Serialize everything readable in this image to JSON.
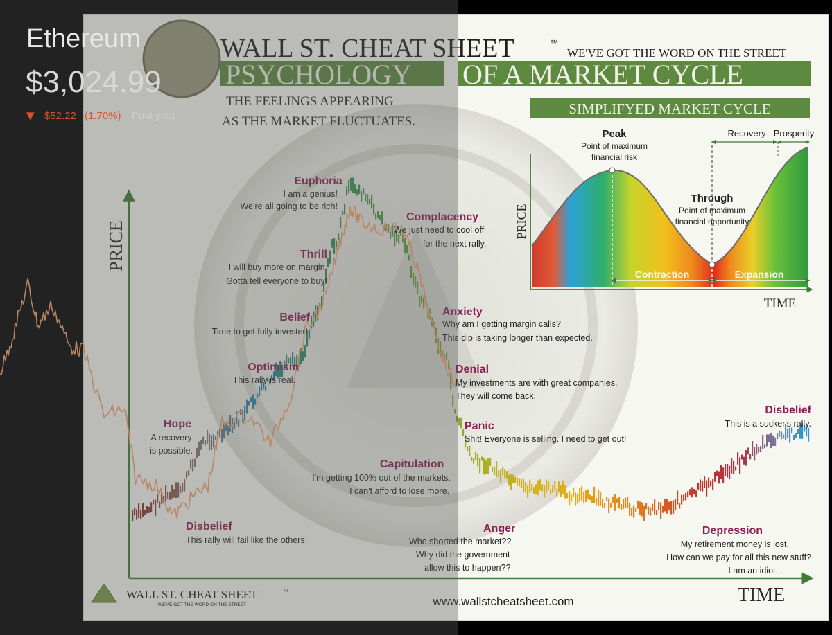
{
  "overlay": {
    "asset_name": "Ethereum",
    "price": "$3,024.99",
    "change_arrow": "▼",
    "change_value": "$52.22",
    "change_percent": "(1.70%)",
    "period": "Past year",
    "down_color": "#d9532a"
  },
  "header": {
    "brand": "WALL ST. CHEAT SHEET",
    "tm": "™",
    "tagline": "WE'VE GOT THE WORD ON THE STREET",
    "title_part1": "PSYCHOLOGY",
    "title_part2": "OF A MARKET CYCLE",
    "subtitle_line1": "THE FEELINGS APPEARING",
    "subtitle_line2": "AS THE MARKET FLUCTUATES.",
    "title_bar_color": "#4f7f3a"
  },
  "simplified": {
    "banner": "SIMPLIFYED MARKET CYCLE",
    "peak": "Peak",
    "peak_desc_1": "Point of maximum",
    "peak_desc_2": "financial risk",
    "recovery": "Recovery",
    "prosperity": "Prosperity",
    "through": "Through",
    "through_desc_1": "Point of maximum",
    "through_desc_2": "financial opportunity",
    "contraction": "Contraction",
    "expansion": "Expansion",
    "price_label": "PRICE",
    "time_label": "TIME"
  },
  "chart_data": {
    "type": "line",
    "title": "PSYCHOLOGY OF A MARKET CYCLE",
    "xlabel": "TIME",
    "ylabel": "PRICE",
    "stages": [
      {
        "name": "Disbelief",
        "quote": "This rally will fail like the others.",
        "level": 0.12
      },
      {
        "name": "Hope",
        "quote": "A recovery is possible.",
        "level": 0.28
      },
      {
        "name": "Optimism",
        "quote": "This rally is real.",
        "level": 0.5
      },
      {
        "name": "Belief",
        "quote": "Time to get fully invested.",
        "level": 0.64
      },
      {
        "name": "Thrill",
        "quote": "I will buy more on margin. Gotta tell everyone to buy!",
        "level": 0.83
      },
      {
        "name": "Euphoria",
        "quote": "I am a genius! We're all going to be rich!",
        "level": 1.0
      },
      {
        "name": "Complacency",
        "quote": "We just need to cool off for the next rally.",
        "level": 0.86
      },
      {
        "name": "Anxiety",
        "quote": "Why am I getting margin calls? This dip is taking longer than expected.",
        "level": 0.67
      },
      {
        "name": "Denial",
        "quote": "My investments are with great companies. They will come back.",
        "level": 0.52
      },
      {
        "name": "Panic",
        "quote": "Shit! Everyone is selling. I need to get out!",
        "level": 0.33
      },
      {
        "name": "Capitulation",
        "quote": "I'm getting 100% out of the markets. I can't afford to lose more.",
        "level": 0.22
      },
      {
        "name": "Anger",
        "quote": "Who shorted the market?? Why did the government allow this to happen??",
        "level": 0.14
      },
      {
        "name": "Depression",
        "quote": "My retirement money is lost. How can we pay for all this new stuff? I am an idiot.",
        "level": 0.08
      },
      {
        "name": "Disbelief",
        "quote": "This is a sucker's rally.",
        "level": 0.3
      }
    ],
    "labels": {
      "euphoria": {
        "name": "Euphoria",
        "l1": "I am a genius!",
        "l2": "We're all going to be rich!"
      },
      "complacency": {
        "name": "Complacency",
        "l1": "We just need to cool off",
        "l2": "for the next rally."
      },
      "thrill": {
        "name": "Thrill",
        "l1": "I will buy more on margin.",
        "l2": "Gotta tell everyone to buy!"
      },
      "anxiety": {
        "name": "Anxiety",
        "l1": "Why am I getting margin calls?",
        "l2": "This dip is taking longer than expected."
      },
      "belief": {
        "name": "Belief",
        "l1": "Time to get fully invested."
      },
      "optimism": {
        "name": "Optimism",
        "l1": "This rally is real."
      },
      "denial": {
        "name": "Denial",
        "l1": "My investments are with great companies.",
        "l2": "They will come back."
      },
      "hope": {
        "name": "Hope",
        "l1": "A recovery",
        "l2": "is possible."
      },
      "panic": {
        "name": "Panic",
        "l1": "Shit! Everyone is selling. I need to get out!"
      },
      "capitulation": {
        "name": "Capitulation",
        "l1": "I'm getting 100% out of the markets.",
        "l2": "I can't afford to lose more."
      },
      "disbelief1": {
        "name": "Disbelief",
        "l1": "This rally will fail like the others."
      },
      "anger": {
        "name": "Anger",
        "l1": "Who shorted the market??",
        "l2": "Why did the government",
        "l3": "allow this to happen??"
      },
      "disbelief2": {
        "name": "Disbelief",
        "l1": "This is a sucker's rally."
      },
      "depression": {
        "name": "Depression",
        "l1": "My retirement money is lost.",
        "l2": "How can we pay for all this new stuff?",
        "l3": "I am an idiot."
      }
    },
    "stage_color": "#8a1f55"
  },
  "footer": {
    "brand": "WALL ST. CHEAT SHEET",
    "tm": "™",
    "tagline": "WE'VE GOT THE WORD ON THE STREET",
    "url": "www.wallstcheatsheet.com"
  }
}
